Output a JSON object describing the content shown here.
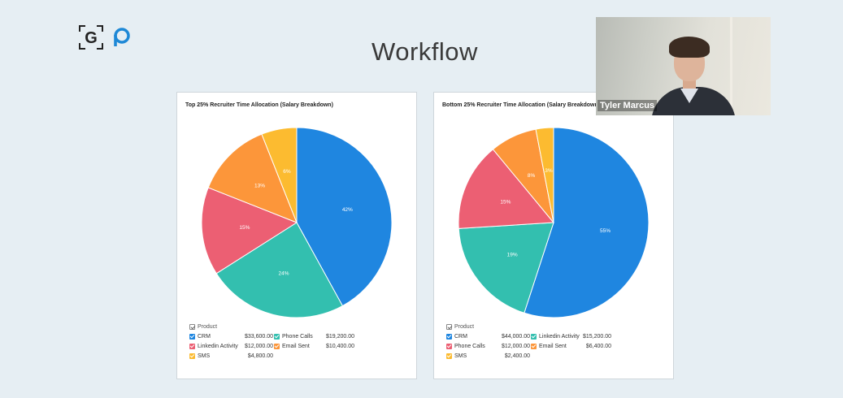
{
  "slide": {
    "title": "Workflow"
  },
  "video": {
    "name": "Tyler Marcus"
  },
  "chart_data": [
    {
      "type": "pie",
      "title": "Top 25% Recruiter Time Allocation (Salary Breakdown)",
      "legend_header": "Product",
      "slices": [
        {
          "label": "CRM",
          "value": 33600,
          "value_label": "$33,600.00",
          "percent_label": "42%",
          "color": "#1f86e0"
        },
        {
          "label": "Phone Calls",
          "value": 19200,
          "value_label": "$19,200.00",
          "percent_label": "24%",
          "color": "#33bfaf"
        },
        {
          "label": "Linkedin Activity",
          "value": 12000,
          "value_label": "$12,000.00",
          "percent_label": "15%",
          "color": "#ec5f73"
        },
        {
          "label": "Email Sent",
          "value": 10400,
          "value_label": "$10,400.00",
          "percent_label": "13%",
          "color": "#fc963a"
        },
        {
          "label": "SMS",
          "value": 4800,
          "value_label": "$4,800.00",
          "percent_label": "6%",
          "color": "#fcbb30"
        }
      ]
    },
    {
      "type": "pie",
      "title": "Bottom 25% Recruiter Time Allocation (Salary Breakdown)",
      "legend_header": "Product",
      "slices": [
        {
          "label": "CRM",
          "value": 44000,
          "value_label": "$44,000.00",
          "percent_label": "55%",
          "color": "#1f86e0"
        },
        {
          "label": "Linkedin Activity",
          "value": 15200,
          "value_label": "$15,200.00",
          "percent_label": "19%",
          "color": "#33bfaf"
        },
        {
          "label": "Phone Calls",
          "value": 12000,
          "value_label": "$12,000.00",
          "percent_label": "15%",
          "color": "#ec5f73"
        },
        {
          "label": "Email Sent",
          "value": 6400,
          "value_label": "$6,400.00",
          "percent_label": "8%",
          "color": "#fc963a"
        },
        {
          "label": "SMS",
          "value": 2400,
          "value_label": "$2,400.00",
          "percent_label": "3%",
          "color": "#fcbb30"
        }
      ]
    }
  ]
}
